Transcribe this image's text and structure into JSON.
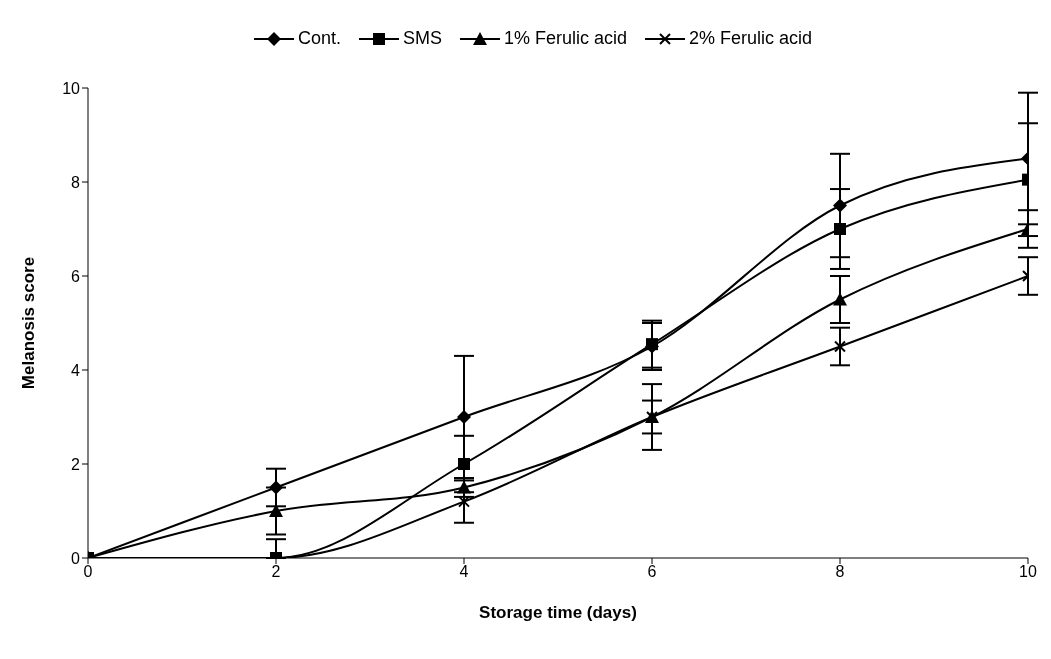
{
  "chart_data": {
    "type": "line",
    "xlabel": "Storage time (days)",
    "ylabel": "Melanosis score",
    "x": [
      0,
      2,
      4,
      6,
      8,
      10
    ],
    "xlim": [
      0,
      10
    ],
    "xticks": [
      0,
      2,
      4,
      6,
      8,
      10
    ],
    "ylim": [
      0,
      10
    ],
    "yticks": [
      0,
      2,
      4,
      6,
      8,
      10
    ],
    "grid": false,
    "legend": "top",
    "line_style": "solid",
    "series": [
      {
        "name": "Cont.",
        "color": "#000000",
        "marker": "diamond",
        "values": [
          0,
          1.5,
          3.0,
          4.5,
          7.5,
          8.5
        ],
        "errors": [
          null,
          0.4,
          1.3,
          0.5,
          1.1,
          1.4
        ]
      },
      {
        "name": "SMS",
        "color": "#000000",
        "marker": "square",
        "values": [
          0,
          0,
          2.0,
          4.55,
          7.0,
          8.05
        ],
        "errors": [
          null,
          [
            0,
            0.4
          ],
          0.6,
          0.5,
          0.85,
          1.2
        ]
      },
      {
        "name": "1% Ferulic acid",
        "color": "#000000",
        "marker": "triangle",
        "values": [
          0,
          1.0,
          1.5,
          3.0,
          5.5,
          7.0
        ],
        "errors": [
          null,
          0.5,
          0.2,
          0.7,
          0.5,
          0.4
        ]
      },
      {
        "name": "2% Ferulic acid",
        "color": "#000000",
        "marker": "cross",
        "values": [
          0,
          0,
          1.2,
          3.0,
          4.5,
          6.0
        ],
        "errors": [
          null,
          null,
          0.45,
          0.35,
          0.4,
          0.4
        ]
      }
    ]
  }
}
